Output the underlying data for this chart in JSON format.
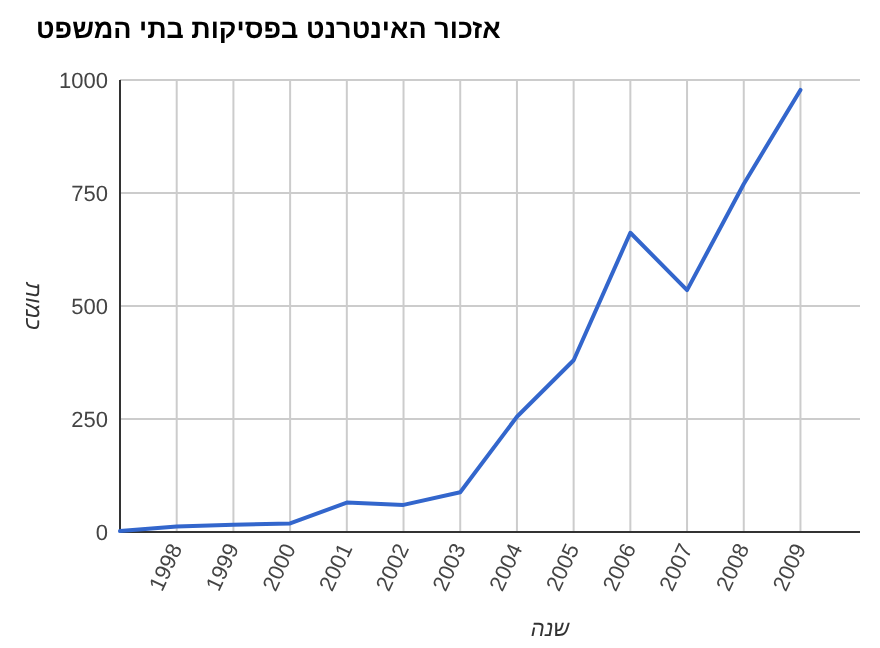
{
  "chart_data": {
    "type": "line",
    "title": "אזכור האינטרנט בפסיקות בתי המשפט",
    "xlabel": "שנה",
    "ylabel": "כמות",
    "categories": [
      null,
      "1998",
      "1999",
      "2000",
      "2001",
      "2002",
      "2003",
      "2004",
      "2005",
      "2006",
      "2007",
      "2008",
      "2009"
    ],
    "series": [
      {
        "color": "#3366cc",
        "values": [
          2,
          12,
          16,
          19,
          65,
          60,
          88,
          255,
          380,
          662,
          535,
          770,
          978
        ]
      }
    ],
    "ylim": [
      0,
      1000
    ],
    "yticks": [
      0,
      250,
      500,
      750,
      1000
    ],
    "grid": true,
    "marker": "none",
    "line_style": "solid"
  }
}
